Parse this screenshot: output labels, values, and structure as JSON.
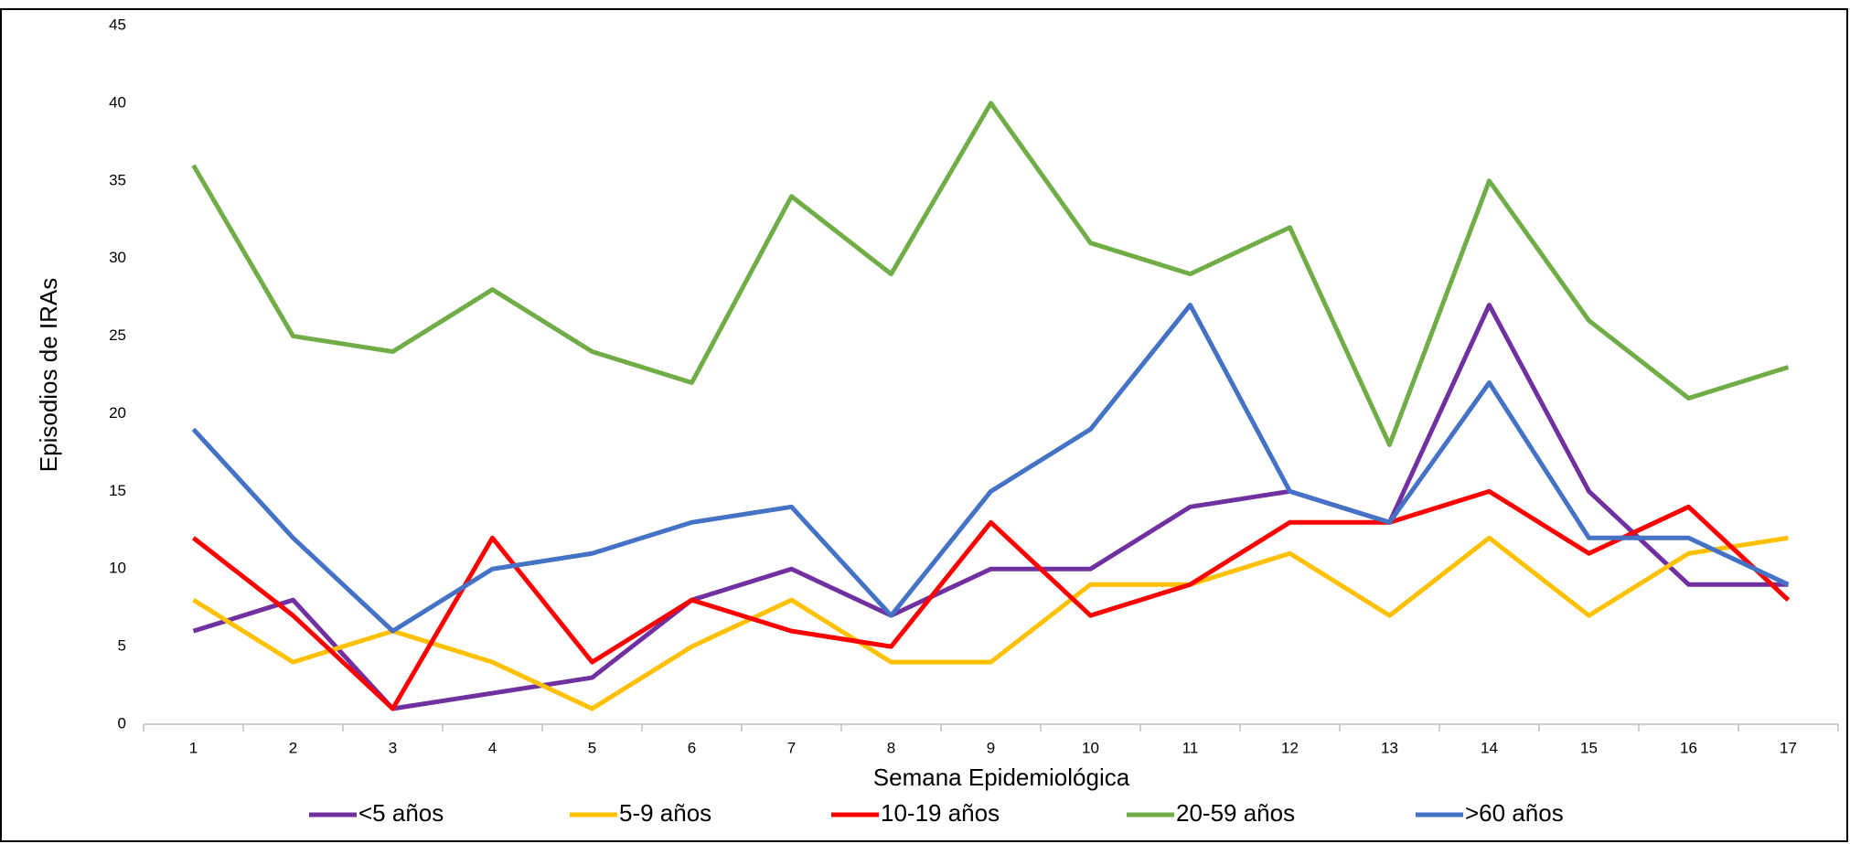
{
  "chart_data": {
    "type": "line",
    "x_label": "Semana Epidemiológica",
    "y_label": "Episodios de IRAs",
    "categories": [
      "1",
      "2",
      "3",
      "4",
      "5",
      "6",
      "7",
      "8",
      "9",
      "10",
      "11",
      "12",
      "13",
      "14",
      "15",
      "16",
      "17"
    ],
    "series": [
      {
        "name": "<5 años",
        "color": "#7030a0",
        "values": [
          6,
          8,
          1,
          2,
          3,
          8,
          10,
          7,
          10,
          10,
          14,
          15,
          13,
          27,
          15,
          9,
          9
        ]
      },
      {
        "name": "5-9 años",
        "color": "#ffc000",
        "values": [
          8,
          4,
          6,
          4,
          1,
          5,
          8,
          4,
          4,
          9,
          9,
          11,
          7,
          12,
          7,
          11,
          12
        ]
      },
      {
        "name": "10-19 años",
        "color": "#ff0000",
        "values": [
          12,
          7,
          1,
          12,
          4,
          8,
          6,
          5,
          13,
          7,
          9,
          13,
          13,
          15,
          11,
          14,
          8
        ]
      },
      {
        "name": "20-59 años",
        "color": "#70ad47",
        "values": [
          36,
          25,
          24,
          28,
          24,
          22,
          34,
          29,
          40,
          31,
          29,
          32,
          18,
          35,
          26,
          21,
          23
        ]
      },
      {
        "name": ">60 años",
        "color": "#4472c4",
        "values": [
          19,
          12,
          6,
          10,
          11,
          13,
          14,
          7,
          15,
          19,
          27,
          15,
          13,
          22,
          12,
          12,
          9
        ]
      }
    ],
    "ylim": [
      0,
      45
    ],
    "yticks": [
      0,
      5,
      10,
      15,
      20,
      25,
      30,
      35,
      40,
      45
    ]
  }
}
